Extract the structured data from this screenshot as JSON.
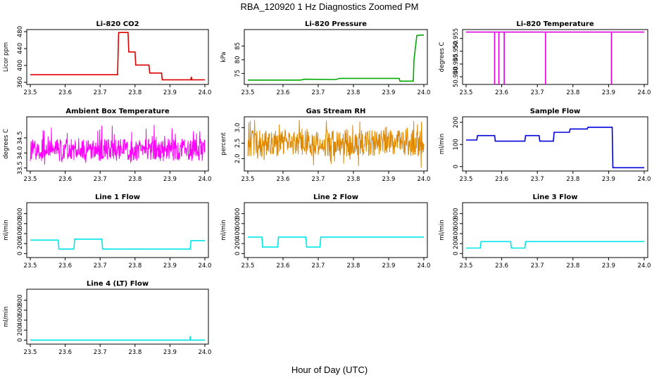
{
  "figure": {
    "title": "RBA_120920  1 Hz Diagnostics Zoomed PM",
    "xlabel": "Hour of Day (UTC)"
  },
  "chart_data": [
    {
      "type": "line",
      "title": "Li-820 CO2",
      "ylabel": "Licor ppm",
      "color": "#dd0000",
      "xlim": [
        23.5,
        24.0
      ],
      "ylim": [
        355,
        485
      ],
      "xticks": [
        "23.5",
        "23.6",
        "23.7",
        "23.8",
        "23.9",
        "24.0"
      ],
      "yticks": [
        360,
        400,
        440,
        480
      ],
      "series": [
        {
          "x": [
            23.5,
            23.75,
            23.753,
            23.78,
            23.782,
            23.8,
            23.802,
            23.84,
            23.842,
            23.876,
            23.878,
            23.96,
            23.961,
            23.963,
            24.0
          ],
          "y": [
            378,
            378,
            478,
            478,
            432,
            432,
            401,
            401,
            382,
            382,
            366,
            366,
            373,
            366,
            366
          ]
        }
      ]
    },
    {
      "type": "line",
      "title": "Li-820 Pressure",
      "ylabel": "kPa",
      "color": "#00aa00",
      "xlim": [
        23.5,
        24.0
      ],
      "ylim": [
        71,
        91
      ],
      "xticks": [
        "23.5",
        "23.6",
        "23.7",
        "23.8",
        "23.9",
        "24.0"
      ],
      "yticks": [
        75,
        80,
        85
      ],
      "series": [
        {
          "x": [
            23.5,
            23.65,
            23.66,
            23.75,
            23.76,
            23.93,
            23.932,
            23.97,
            23.972,
            23.98,
            23.99,
            24.0
          ],
          "y": [
            72.6,
            72.6,
            72.9,
            72.8,
            73.2,
            73.2,
            72.2,
            72.2,
            80,
            88.8,
            89,
            89
          ]
        }
      ]
    },
    {
      "type": "line",
      "title": "Li-820 Temperature",
      "ylabel": "degrees C",
      "color": "#dd00dd",
      "xlim": [
        23.5,
        24.0
      ],
      "ylim": [
        50.937,
        50.9585
      ],
      "xticks": [
        "23.5",
        "23.6",
        "23.7",
        "23.8",
        "23.9",
        "24.0"
      ],
      "yticks": [
        "50.940",
        "50.945",
        "50.950",
        "50.955"
      ],
      "series": [
        {
          "x": [
            23.5,
            24.0
          ],
          "y": [
            50.9575,
            50.9575
          ]
        }
      ],
      "dips": [
        23.58,
        23.592,
        23.607,
        23.723,
        23.908
      ]
    },
    {
      "type": "line",
      "title": "Ambient Box Temperature",
      "ylabel": "degrees C",
      "color": "#ff00ff",
      "xlim": [
        23.5,
        24.0
      ],
      "ylim": [
        33.4,
        35.2
      ],
      "xticks": [
        "23.5",
        "23.6",
        "23.7",
        "23.8",
        "23.9",
        "24.0"
      ],
      "yticks": [
        "33.5",
        "34.0",
        "34.5"
      ],
      "series": [
        {
          "x": [
            23.5,
            24.0
          ],
          "y": [
            34.1,
            34.1
          ]
        }
      ],
      "band": {
        "center": 34.1,
        "range": [
          33.6,
          34.95
        ]
      }
    },
    {
      "type": "line",
      "title": "Gas Stream RH",
      "ylabel": "percent",
      "color": "#dd8800",
      "xlim": [
        23.5,
        24.0
      ],
      "ylim": [
        1.6,
        3.35
      ],
      "xticks": [
        "23.5",
        "23.6",
        "23.7",
        "23.8",
        "23.9",
        "24.0"
      ],
      "yticks": [
        "2.0",
        "2.5",
        "3.0"
      ],
      "series": [
        {
          "x": [
            23.5,
            24.0
          ],
          "y": [
            2.5,
            2.5
          ]
        }
      ],
      "band": {
        "center": 2.5,
        "range": [
          1.7,
          3.25
        ]
      }
    },
    {
      "type": "line",
      "title": "Sample Flow",
      "ylabel": "ml/min",
      "color": "#0000dd",
      "xlim": [
        23.5,
        24.0
      ],
      "ylim": [
        -20,
        225
      ],
      "xticks": [
        "23.5",
        "23.6",
        "23.7",
        "23.8",
        "23.9",
        "24.0"
      ],
      "yticks": [
        0,
        100,
        200
      ],
      "series": [
        {
          "x": [
            23.5,
            23.53,
            23.532,
            23.58,
            23.582,
            23.665,
            23.667,
            23.705,
            23.707,
            23.745,
            23.747,
            23.79,
            23.792,
            23.84,
            23.842,
            23.91,
            23.912,
            24.0
          ],
          "y": [
            120,
            120,
            140,
            140,
            115,
            115,
            140,
            140,
            115,
            115,
            155,
            155,
            170,
            170,
            178,
            178,
            -5,
            -5
          ]
        }
      ]
    },
    {
      "type": "line",
      "title": "Line 1 Flow",
      "ylabel": "ml/min",
      "color": "#00e5e5",
      "xlim": [
        23.5,
        24.0
      ],
      "ylim": [
        -80,
        1020
      ],
      "xticks": [
        "23.5",
        "23.6",
        "23.7",
        "23.8",
        "23.9",
        "24.0"
      ],
      "yticks": [
        0,
        200,
        400,
        600,
        800
      ],
      "series": [
        {
          "x": [
            23.5,
            23.58,
            23.582,
            23.625,
            23.627,
            23.705,
            23.707,
            23.958,
            23.96,
            24.0
          ],
          "y": [
            270,
            270,
            90,
            90,
            290,
            290,
            90,
            90,
            260,
            260
          ]
        }
      ]
    },
    {
      "type": "line",
      "title": "Line 2 Flow",
      "ylabel": "ml/min",
      "color": "#00e5e5",
      "xlim": [
        23.5,
        24.0
      ],
      "ylim": [
        -80,
        1020
      ],
      "xticks": [
        "23.5",
        "23.6",
        "23.7",
        "23.8",
        "23.9",
        "24.0"
      ],
      "yticks": [
        0,
        200,
        400,
        600,
        800
      ],
      "series": [
        {
          "x": [
            23.5,
            23.54,
            23.542,
            23.585,
            23.587,
            23.665,
            23.667,
            23.705,
            23.707,
            24.0
          ],
          "y": [
            330,
            330,
            130,
            130,
            330,
            330,
            130,
            130,
            330,
            330
          ]
        }
      ]
    },
    {
      "type": "line",
      "title": "Line 3 Flow",
      "ylabel": "ml/min",
      "color": "#00e5e5",
      "xlim": [
        23.5,
        24.0
      ],
      "ylim": [
        -80,
        1020
      ],
      "xticks": [
        "23.5",
        "23.6",
        "23.7",
        "23.8",
        "23.9",
        "24.0"
      ],
      "yticks": [
        0,
        200,
        400,
        600,
        800
      ],
      "series": [
        {
          "x": [
            23.5,
            23.54,
            23.542,
            23.625,
            23.627,
            23.665,
            23.667,
            24.0
          ],
          "y": [
            110,
            110,
            240,
            240,
            110,
            110,
            240,
            240
          ]
        }
      ]
    },
    {
      "type": "line",
      "title": "Line 4 (LT) Flow",
      "ylabel": "ml/min",
      "color": "#00e5e5",
      "xlim": [
        23.5,
        24.0
      ],
      "ylim": [
        -80,
        1020
      ],
      "xticks": [
        "23.5",
        "23.6",
        "23.7",
        "23.8",
        "23.9",
        "24.0"
      ],
      "yticks": [
        0,
        200,
        400,
        600,
        800
      ],
      "series": [
        {
          "x": [
            23.5,
            23.957,
            23.958,
            23.959,
            24.0
          ],
          "y": [
            0,
            0,
            80,
            0,
            0
          ]
        }
      ]
    }
  ]
}
